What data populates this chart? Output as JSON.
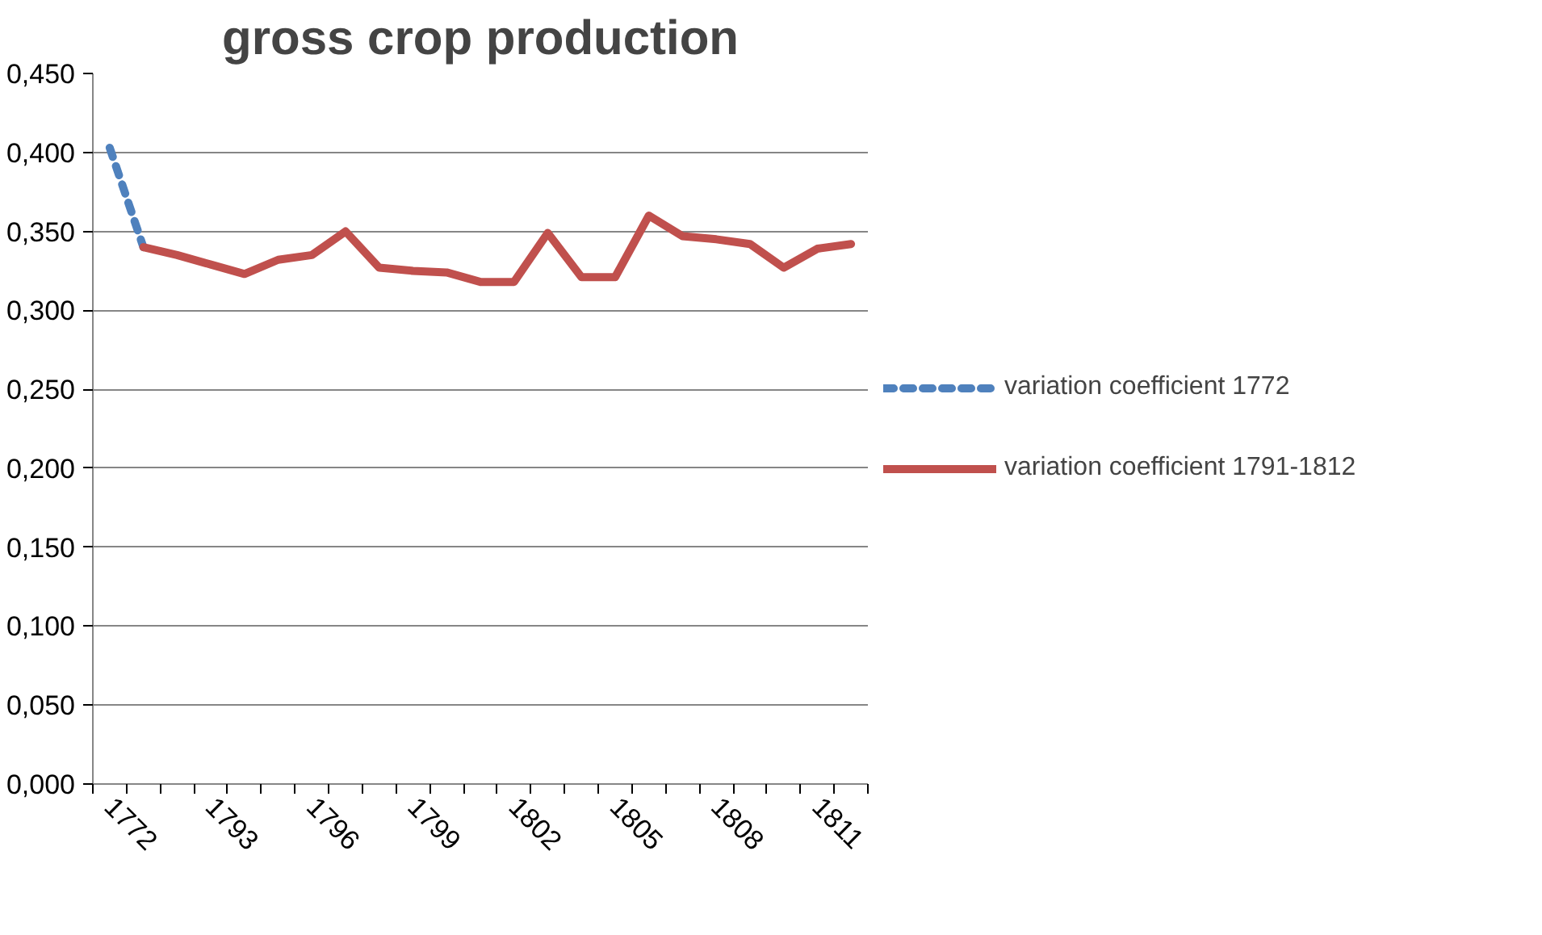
{
  "chart_data": {
    "type": "line",
    "title": "gross crop production",
    "categories": [
      "1772",
      null,
      null,
      "1793",
      null,
      null,
      "1796",
      null,
      null,
      "1799",
      null,
      null,
      "1802",
      null,
      null,
      "1805",
      null,
      null,
      "1808",
      null,
      null,
      "1811",
      null
    ],
    "series": [
      {
        "name": "variation coefficient 1772",
        "color": "#4f81bd",
        "line_style": "dashed",
        "values": [
          0.403,
          0.34,
          null,
          null,
          null,
          null,
          null,
          null,
          null,
          null,
          null,
          null,
          null,
          null,
          null,
          null,
          null,
          null,
          null,
          null,
          null,
          null,
          null
        ]
      },
      {
        "name": "variation coefficient 1791-1812",
        "color": "#c0504d",
        "line_style": "solid",
        "values": [
          null,
          0.34,
          0.335,
          0.329,
          0.323,
          0.332,
          0.335,
          0.35,
          0.327,
          0.325,
          0.324,
          0.318,
          0.318,
          0.349,
          0.321,
          0.321,
          0.36,
          0.347,
          0.345,
          0.342,
          0.327,
          0.339,
          0.342
        ]
      }
    ],
    "ylim": [
      0,
      0.45
    ],
    "yticks": [
      {
        "value": 0,
        "label": "0,000"
      },
      {
        "value": 0.05,
        "label": "0,050"
      },
      {
        "value": 0.1,
        "label": "0,100"
      },
      {
        "value": 0.15,
        "label": "0,150"
      },
      {
        "value": 0.2,
        "label": "0,200"
      },
      {
        "value": 0.25,
        "label": "0,250"
      },
      {
        "value": 0.3,
        "label": "0,300"
      },
      {
        "value": 0.35,
        "label": "0,350"
      },
      {
        "value": 0.4,
        "label": "0,400"
      },
      {
        "value": 0.45,
        "label": "0,450"
      }
    ],
    "grid": "y",
    "legend": "right",
    "marker": "none"
  }
}
